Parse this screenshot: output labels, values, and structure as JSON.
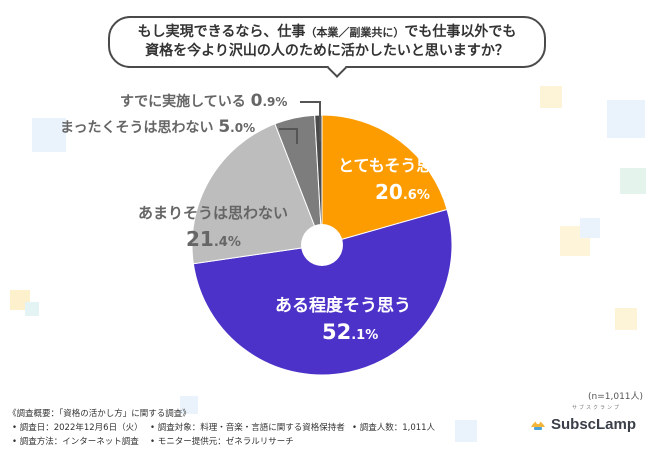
{
  "question": {
    "line1_a": "もし実現できるなら、仕事",
    "line1_paren": "（本業／副業共に）",
    "line1_b": "でも仕事以外でも",
    "line2": "資格を今より沢山の人のために活かしたいと思いますか？"
  },
  "sample_size": "(n=1,011人)",
  "survey": {
    "title": "《調査概要：「資格の活かし方」に関する調査》",
    "date": "• 調査日：2022年12月6日（火）",
    "target": "• 調査対象：料理・音楽・言語に関する資格保持者",
    "count": "• 調査人数：1,011人",
    "method": "• 調査方法：インターネット調査",
    "provider": "• モニター提供元：ゼネラルリサーチ"
  },
  "logo": {
    "text": "SubscLamp",
    "ruby": "サブスクランプ"
  },
  "colors": {
    "very_much": "#fd9c00",
    "somewhat": "#4c32c8",
    "not_really": "#bdbdbd",
    "not_at_all": "#7d7d7d",
    "already": "#4a4a4a"
  },
  "chart_data": {
    "type": "pie",
    "donut": true,
    "start": "12 o'clock",
    "direction": "clockwise",
    "slices": [
      {
        "label": "とてもそう思う",
        "value": 20.6,
        "pct_int": "20",
        "pct_dec": ".6%",
        "color": "#fd9c00"
      },
      {
        "label": "ある程度そう思う",
        "value": 52.1,
        "pct_int": "52",
        "pct_dec": ".1%",
        "color": "#4c32c8"
      },
      {
        "label": "あまりそうは思わない",
        "value": 21.4,
        "pct_int": "21",
        "pct_dec": ".4%",
        "color": "#bdbdbd"
      },
      {
        "label": "まったくそうは思わない",
        "value": 5.0,
        "pct_int": "5",
        "pct_dec": ".0%",
        "color": "#7d7d7d"
      },
      {
        "label": "すでに実施している",
        "value": 0.9,
        "pct_int": "0",
        "pct_dec": ".9%",
        "color": "#4a4a4a"
      }
    ]
  }
}
